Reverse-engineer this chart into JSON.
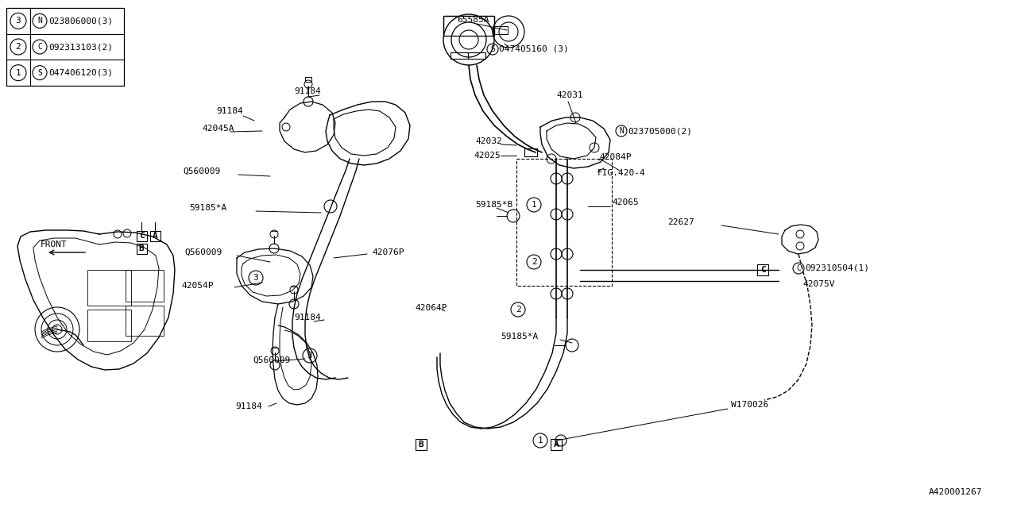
{
  "bg_color": "#ffffff",
  "line_color": "#000000",
  "diagram_id": "A420001267",
  "legend": [
    {
      "num": "1",
      "type": "S",
      "code": "047406120(3)"
    },
    {
      "num": "2",
      "type": "C",
      "code": "092313103(2)"
    },
    {
      "num": "3",
      "type": "N",
      "code": "023806000(3)"
    }
  ],
  "figsize": [
    12.8,
    6.4
  ],
  "dpi": 100
}
